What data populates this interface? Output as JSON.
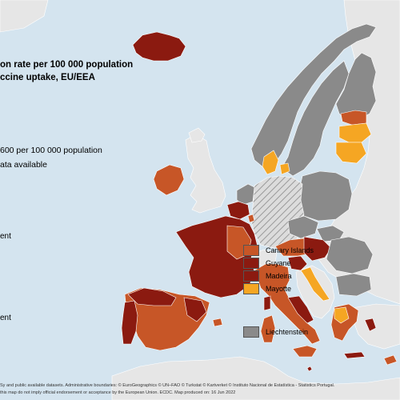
{
  "title": {
    "line1": "on rate per 100 000 population",
    "line2": "ccine uptake, EU/EEA"
  },
  "legend": {
    "classes": [
      {
        "label": "600 per 100 000 population",
        "color": "#c75627"
      },
      {
        "label": "ata available",
        "color": "#8a8a8a"
      }
    ],
    "outermost_heading": "ent",
    "outermost_regions": [
      {
        "label": "Canary Islands",
        "color": "#c75627"
      },
      {
        "label": "Guyane",
        "color": "#8b1a10"
      },
      {
        "label": "Madeira",
        "color": "#8b1a10"
      },
      {
        "label": "Mayotte",
        "color": "#f5a623"
      }
    ],
    "other_heading": "ent",
    "other_regions": [
      {
        "label": "Liechtenstein",
        "color": "#8a8a8a"
      }
    ]
  },
  "colors": {
    "sea": "#d4e4ef",
    "non_eu_land": "#e6e6e6",
    "no_data": "#8a8a8a",
    "dark_red": "#8b1a10",
    "orange_red": "#c75627",
    "orange": "#f5a623",
    "hatched_base": "#dcdcdc",
    "hatched_line": "#9a9a9a"
  },
  "footer": {
    "line1": "Sy and public available datasets. Administrative boundaries: © EuroGeographics © UN–FAO © Turkstat © Kartverket © Instituto Nacional de Estatística - Statistics Portugal.",
    "line2": "this map do not imply official endorsement or acceptance by the European Union. ECDC. Map produced on: 16 Jun 2022"
  }
}
